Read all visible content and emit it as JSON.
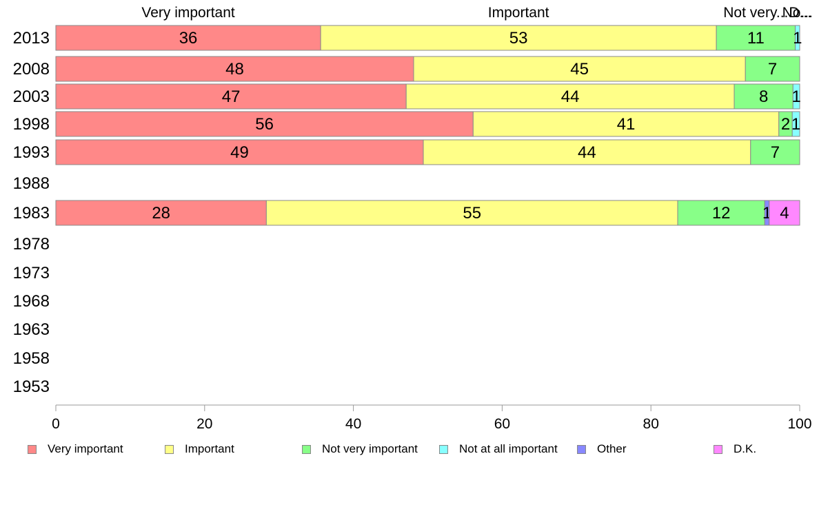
{
  "chart_data": {
    "type": "bar",
    "orientation": "horizontal",
    "stacked": true,
    "categories": [
      "2013",
      "2008",
      "2003",
      "1998",
      "1993",
      "1988",
      "1983",
      "1978",
      "1973",
      "1968",
      "1963",
      "1958",
      "1953"
    ],
    "series": [
      {
        "name": "Very important",
        "color": "#ff8888",
        "values": [
          35.6,
          48.1,
          47.1,
          56.1,
          49.4,
          null,
          28.3,
          null,
          null,
          null,
          null,
          null,
          null
        ],
        "labels": [
          "36",
          "48",
          "47",
          "56",
          "49",
          "",
          "28",
          "",
          "",
          "",
          "",
          "",
          ""
        ]
      },
      {
        "name": "Important",
        "color": "#ffff88",
        "values": [
          53.2,
          44.6,
          44.1,
          41.1,
          44.0,
          null,
          55.3,
          null,
          null,
          null,
          null,
          null,
          null
        ],
        "labels": [
          "53",
          "45",
          "44",
          "41",
          "44",
          "",
          "55",
          "",
          "",
          "",
          "",
          "",
          ""
        ]
      },
      {
        "name": "Not very important",
        "color": "#88ff88",
        "values": [
          10.6,
          7.3,
          7.9,
          1.8,
          6.6,
          null,
          11.7,
          null,
          null,
          null,
          null,
          null,
          null
        ],
        "labels": [
          "11",
          "7",
          "8",
          "2",
          "7",
          "",
          "12",
          "",
          "",
          "",
          "",
          "",
          ""
        ]
      },
      {
        "name": "Not at all important",
        "color": "#88ffff",
        "values": [
          0.6,
          0.0,
          0.9,
          1.0,
          0.0,
          null,
          0.0,
          null,
          null,
          null,
          null,
          null,
          null
        ],
        "labels": [
          "1",
          "",
          "1",
          "1",
          "",
          "",
          "",
          "",
          "",
          "",
          "",
          "",
          ""
        ]
      },
      {
        "name": "Other",
        "color": "#8888ff",
        "values": [
          0,
          0,
          0,
          0,
          0,
          null,
          0.6,
          null,
          null,
          null,
          null,
          null,
          null
        ],
        "labels": [
          "",
          "",
          "",
          "",
          "",
          "",
          "1",
          "",
          "",
          "",
          "",
          "",
          ""
        ]
      },
      {
        "name": "D.K.",
        "color": "#ff88ff",
        "values": [
          0,
          0,
          0,
          0,
          0,
          null,
          4.1,
          null,
          null,
          null,
          null,
          null,
          null
        ],
        "labels": [
          "",
          "",
          "",
          "",
          "",
          "",
          "4",
          "",
          "",
          "",
          "",
          "",
          ""
        ]
      }
    ],
    "top_labels": [
      "Very important",
      "Important",
      "Not very...",
      "No...",
      "D..."
    ],
    "xlim": [
      0,
      100
    ],
    "xticks": [
      0,
      20,
      40,
      60,
      80,
      100
    ],
    "grid": false,
    "legend_position": "bottom"
  }
}
